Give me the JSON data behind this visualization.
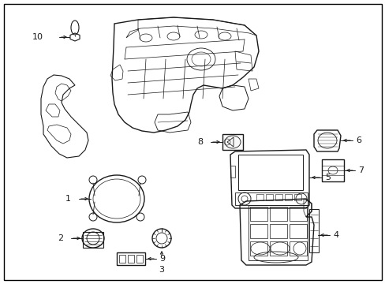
{
  "background_color": "#ffffff",
  "border_color": "#000000",
  "line_color": "#1a1a1a",
  "fig_width": 4.89,
  "fig_height": 3.6,
  "dpi": 100,
  "font_size": 8.0,
  "lw_main": 0.8,
  "lw_thin": 0.5,
  "img_xlim": [
    0,
    489
  ],
  "img_ylim": [
    0,
    360
  ]
}
